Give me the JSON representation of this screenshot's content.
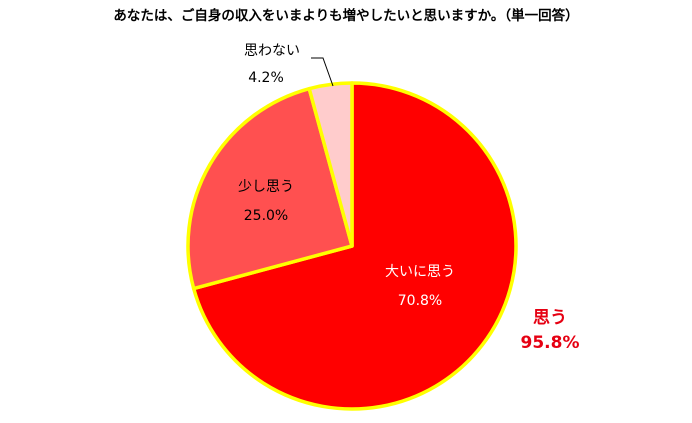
{
  "chart_data": {
    "type": "pie",
    "title": "あなたは、ご自身の収入をいまよりも増やしたいと思いますか。（単一回答）",
    "slices": [
      {
        "label": "大いに思う",
        "value": 70.8,
        "value_text": "70.8%",
        "color": "#ff0000"
      },
      {
        "label": "少し思う",
        "value": 25.0,
        "value_text": "25.0%",
        "color": "#ff5050"
      },
      {
        "label": "思わない",
        "value": 4.2,
        "value_text": "4.2%",
        "color": "#ffcccc"
      }
    ],
    "border_color": "#ffff00",
    "annotation": {
      "label": "思う",
      "value_text": "95.8%",
      "color": "#e60012"
    }
  }
}
